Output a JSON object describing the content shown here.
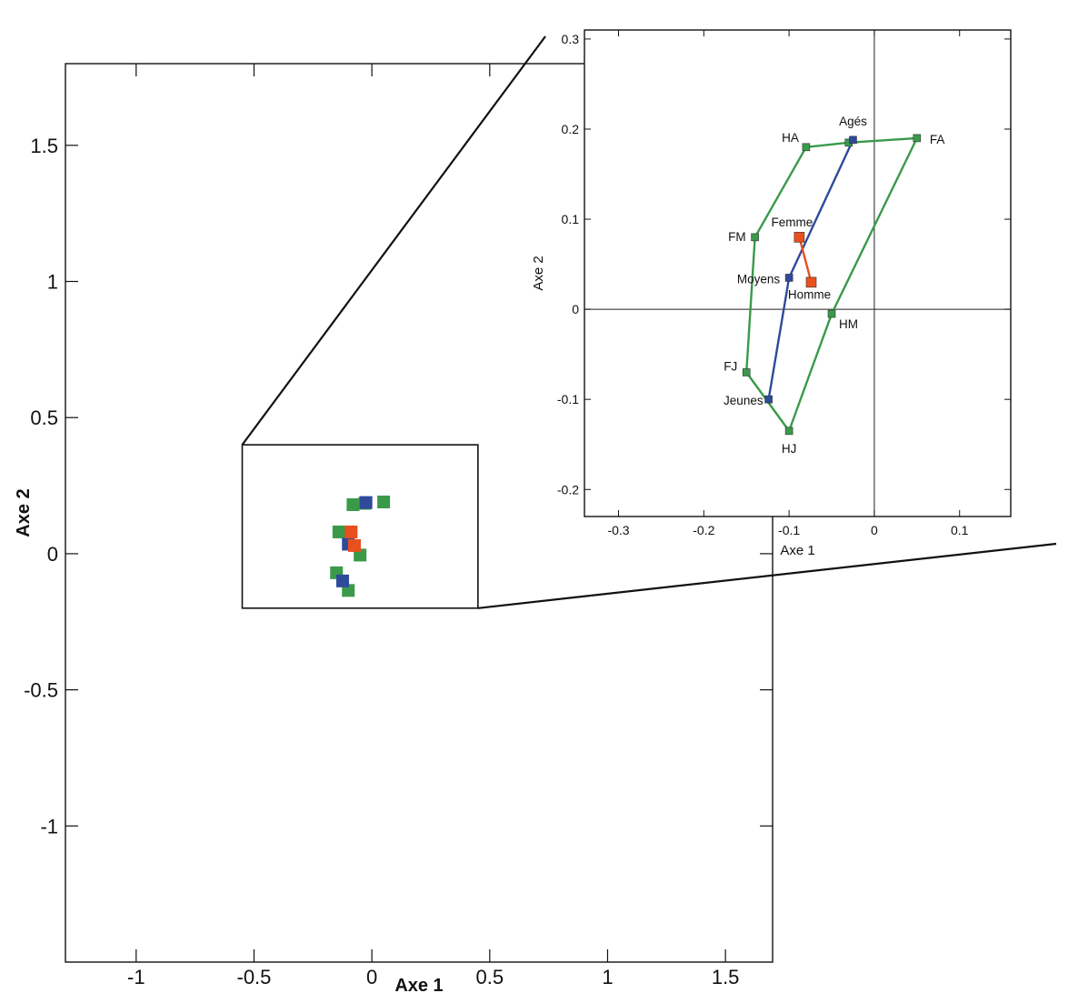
{
  "chart_data": {
    "type": "scatter",
    "main": {
      "xlabel": "Axe 1",
      "ylabel": "Axe 2",
      "xlim": [
        -1.3,
        1.7
      ],
      "ylim": [
        -1.5,
        1.8
      ],
      "xticks": [
        -1,
        -0.5,
        0,
        0.5,
        1,
        1.5
      ],
      "xtick_labels": [
        "-1",
        "-0.5",
        "0",
        "0.5",
        "1",
        "1.5"
      ],
      "yticks": [
        1.5,
        1,
        0.5,
        0,
        -0.5,
        -1
      ],
      "ytick_labels": [
        "1.5",
        "1",
        "0.5",
        "0",
        "-0.5",
        "-1"
      ],
      "zoom_box": {
        "x": [
          -0.55,
          0.45
        ],
        "y": [
          -0.2,
          0.4
        ]
      }
    },
    "inset": {
      "xlabel": "Axe 1",
      "ylabel": "Axe 2",
      "xlim": [
        -0.34,
        0.16
      ],
      "ylim": [
        -0.23,
        0.31
      ],
      "xticks": [
        -0.3,
        -0.2,
        -0.1,
        0,
        0.1
      ],
      "xtick_labels": [
        "-0.3",
        "-0.2",
        "-0.1",
        "0",
        "0.1"
      ],
      "yticks": [
        0.3,
        0.2,
        0.1,
        0,
        -0.1,
        -0.2
      ],
      "ytick_labels": [
        "0.3",
        "0.2",
        "0.1",
        "0",
        "-0.1",
        "-0.2"
      ],
      "zero_lines": true
    },
    "series": [
      {
        "color": "#3a9a4a",
        "closed": true,
        "points": [
          {
            "label": "HA",
            "x": -0.08,
            "y": 0.18
          },
          {
            "label": "",
            "x": -0.03,
            "y": 0.185
          },
          {
            "label": "FA",
            "x": 0.05,
            "y": 0.19
          },
          {
            "label": "HM",
            "x": -0.05,
            "y": -0.005
          },
          {
            "label": "HJ",
            "x": -0.1,
            "y": -0.135
          },
          {
            "label": "FJ",
            "x": -0.15,
            "y": -0.07
          },
          {
            "label": "FM",
            "x": -0.14,
            "y": 0.08
          }
        ]
      },
      {
        "color": "#2f4a9a",
        "closed": false,
        "points": [
          {
            "label": "Agés",
            "x": -0.025,
            "y": 0.188
          },
          {
            "label": "Moyens",
            "x": -0.1,
            "y": 0.035
          },
          {
            "label": "Jeunes",
            "x": -0.124,
            "y": -0.1
          }
        ]
      },
      {
        "color": "#e8501e",
        "closed": false,
        "points": [
          {
            "label": "Femme",
            "x": -0.088,
            "y": 0.08
          },
          {
            "label": "Homme",
            "x": -0.074,
            "y": 0.03
          }
        ]
      }
    ]
  }
}
